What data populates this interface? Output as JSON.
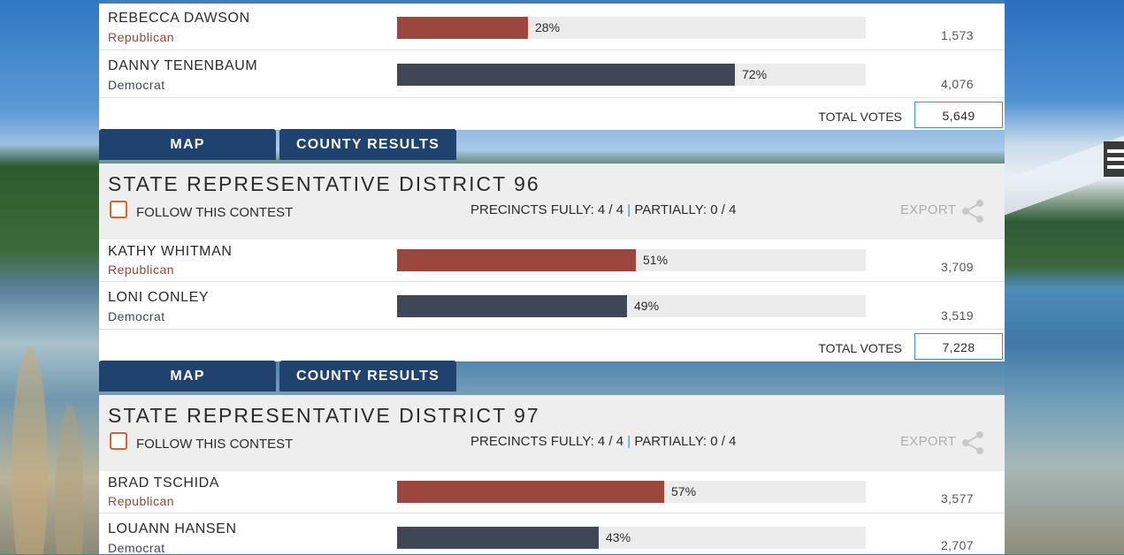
{
  "contests": [
    {
      "title": "",
      "candidates": [
        {
          "name": "REBECCA DAWSON",
          "party": "Republican",
          "percent": 28,
          "percent_label": "28%",
          "votes": "1,573"
        },
        {
          "name": "DANNY TENENBAUM",
          "party": "Democrat",
          "percent": 72,
          "percent_label": "72%",
          "votes": "4,076"
        }
      ],
      "total_label": "TOTAL VOTES",
      "total_votes": "5,649"
    },
    {
      "title": "STATE REPRESENTATIVE DISTRICT 96",
      "follow_label": "FOLLOW THIS CONTEST",
      "precincts_fully": "PRECINCTS FULLY: 4 / 4",
      "precincts_partially": "PARTIALLY: 0 / 4",
      "export_label": "EXPORT",
      "candidates": [
        {
          "name": "KATHY WHITMAN",
          "party": "Republican",
          "percent": 51,
          "percent_label": "51%",
          "votes": "3,709"
        },
        {
          "name": "LONI CONLEY",
          "party": "Democrat",
          "percent": 49,
          "percent_label": "49%",
          "votes": "3,519"
        }
      ],
      "total_label": "TOTAL VOTES",
      "total_votes": "7,228"
    },
    {
      "title": "STATE REPRESENTATIVE DISTRICT 97",
      "follow_label": "FOLLOW THIS CONTEST",
      "precincts_fully": "PRECINCTS FULLY: 4 / 4",
      "precincts_partially": "PARTIALLY: 0 / 4",
      "export_label": "EXPORT",
      "candidates": [
        {
          "name": "BRAD TSCHIDA",
          "party": "Republican",
          "percent": 57,
          "percent_label": "57%",
          "votes": "3,577"
        },
        {
          "name": "LOUANN HANSEN",
          "party": "Democrat",
          "percent": 43,
          "percent_label": "43%",
          "votes": "2,707"
        }
      ]
    }
  ],
  "tabs": {
    "map": "MAP",
    "county_results": "COUNTY RESULTS"
  },
  "separator": "|",
  "colors": {
    "republican": "#9b473e",
    "democrat": "#3f4757",
    "tab": "#1f426f",
    "follow_box": "#e3602a",
    "accent": "#3f8fd0"
  },
  "icons": {
    "menu": "hamburger-menu-icon",
    "share": "share-icon",
    "follow": "checkbox-icon"
  }
}
